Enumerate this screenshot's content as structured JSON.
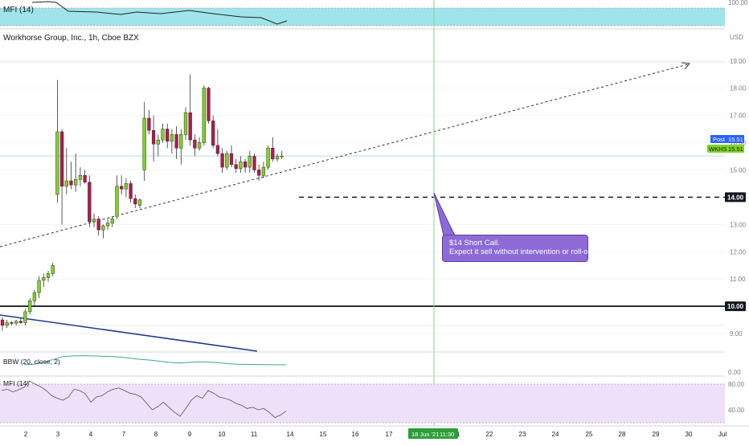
{
  "header": {
    "symbol_title": "Workhorse Group, Inc., 1h, Cboe BZX",
    "currency": "USD"
  },
  "colors": {
    "up": "#7ed321",
    "down": "#b5184e",
    "grid": "#f0f3fa",
    "mfi_top_band": "#9fe4ea",
    "mfi_bottom_band": "#efe0f9",
    "trend_down_line": "#1c3b8f",
    "bbw_line": "#3ea690",
    "crosshair": "#86d486",
    "callout_bg": "#8e6ad6",
    "post_badge": "#2962ff",
    "price_badge": "#7ed321"
  },
  "panes": {
    "top_mfi": {
      "label": "MFI (14)",
      "axis_label": "100.00"
    },
    "bbw": {
      "label": "BBW (20, close, 2)",
      "axis_label": "0.00"
    },
    "mfi": {
      "label": "MFI (14)",
      "axis_labels": [
        "80.00",
        "40.00"
      ]
    }
  },
  "annotation": {
    "line1": "$14 Short Call.",
    "line2": "Expect it sell without intervention or roll-out."
  },
  "badges": {
    "post_label": "Post",
    "post_value": "15.51",
    "symbol_label": "WKHS",
    "symbol_value": "15.51",
    "level_14": "14.00",
    "level_10": "10.00"
  },
  "crosshair": {
    "date_label": "18 Jun '21",
    "time_label": "11:30"
  },
  "chart_data": {
    "type": "candlestick",
    "title": "Workhorse Group, Inc., 1h, Cboe BZX",
    "ylim": [
      8.5,
      19.7
    ],
    "y_ticks": [
      "19.00",
      "18.00",
      "17.00",
      "16.00",
      "15.00",
      "13.00",
      "12.00",
      "11.00",
      "9.00"
    ],
    "x_ticks": [
      "2",
      "3",
      "4",
      "7",
      "8",
      "9",
      "10",
      "11",
      "14",
      "15",
      "16",
      "17",
      "21",
      "22",
      "23",
      "24",
      "25",
      "28",
      "29",
      "30",
      "Jul"
    ],
    "candles": [
      {
        "o": 9.5,
        "h": 9.6,
        "l": 9.1,
        "c": 9.3
      },
      {
        "o": 9.3,
        "h": 9.5,
        "l": 9.2,
        "c": 9.4
      },
      {
        "o": 9.4,
        "h": 9.45,
        "l": 9.3,
        "c": 9.38
      },
      {
        "o": 9.38,
        "h": 9.5,
        "l": 9.3,
        "c": 9.45
      },
      {
        "o": 9.45,
        "h": 9.55,
        "l": 9.35,
        "c": 9.4
      },
      {
        "o": 9.4,
        "h": 9.9,
        "l": 9.3,
        "c": 9.8
      },
      {
        "o": 9.8,
        "h": 10.3,
        "l": 9.7,
        "c": 10.2
      },
      {
        "o": 10.2,
        "h": 10.6,
        "l": 10.0,
        "c": 10.5
      },
      {
        "o": 10.5,
        "h": 11.1,
        "l": 10.3,
        "c": 10.95
      },
      {
        "o": 10.95,
        "h": 11.2,
        "l": 10.7,
        "c": 11.05
      },
      {
        "o": 11.05,
        "h": 11.3,
        "l": 10.9,
        "c": 11.2
      },
      {
        "o": 11.2,
        "h": 11.6,
        "l": 11.1,
        "c": 11.5
      },
      {
        "o": 14.1,
        "h": 18.3,
        "l": 13.8,
        "c": 16.4
      },
      {
        "o": 16.4,
        "h": 16.5,
        "l": 13.0,
        "c": 14.4
      },
      {
        "o": 14.4,
        "h": 15.8,
        "l": 14.1,
        "c": 14.6
      },
      {
        "o": 14.6,
        "h": 15.3,
        "l": 14.3,
        "c": 14.45
      },
      {
        "o": 14.45,
        "h": 15.6,
        "l": 14.2,
        "c": 14.65
      },
      {
        "o": 14.65,
        "h": 15.1,
        "l": 14.4,
        "c": 14.8
      },
      {
        "o": 14.8,
        "h": 15.0,
        "l": 14.5,
        "c": 14.55
      },
      {
        "o": 14.55,
        "h": 14.8,
        "l": 12.9,
        "c": 13.1
      },
      {
        "o": 13.1,
        "h": 13.4,
        "l": 12.9,
        "c": 13.2
      },
      {
        "o": 13.2,
        "h": 13.3,
        "l": 12.6,
        "c": 12.8
      },
      {
        "o": 12.8,
        "h": 13.0,
        "l": 12.5,
        "c": 12.95
      },
      {
        "o": 12.95,
        "h": 13.2,
        "l": 12.8,
        "c": 13.05
      },
      {
        "o": 13.05,
        "h": 13.3,
        "l": 12.9,
        "c": 13.2
      },
      {
        "o": 13.3,
        "h": 14.8,
        "l": 13.2,
        "c": 14.4
      },
      {
        "o": 14.4,
        "h": 14.8,
        "l": 14.1,
        "c": 14.3
      },
      {
        "o": 14.3,
        "h": 14.7,
        "l": 14.0,
        "c": 14.5
      },
      {
        "o": 14.5,
        "h": 14.6,
        "l": 13.8,
        "c": 13.95
      },
      {
        "o": 13.95,
        "h": 14.1,
        "l": 13.6,
        "c": 13.75
      },
      {
        "o": 13.7,
        "h": 13.95,
        "l": 13.6,
        "c": 13.9
      },
      {
        "o": 15.0,
        "h": 17.5,
        "l": 14.6,
        "c": 16.9
      },
      {
        "o": 16.9,
        "h": 17.2,
        "l": 16.3,
        "c": 16.45
      },
      {
        "o": 16.45,
        "h": 17.0,
        "l": 15.3,
        "c": 15.95
      },
      {
        "o": 15.95,
        "h": 16.3,
        "l": 15.5,
        "c": 16.1
      },
      {
        "o": 16.1,
        "h": 16.7,
        "l": 16.0,
        "c": 16.5
      },
      {
        "o": 16.5,
        "h": 16.7,
        "l": 15.8,
        "c": 16.05
      },
      {
        "o": 16.05,
        "h": 16.5,
        "l": 15.6,
        "c": 16.3
      },
      {
        "o": 16.3,
        "h": 16.6,
        "l": 15.4,
        "c": 15.8
      },
      {
        "o": 15.8,
        "h": 16.5,
        "l": 15.2,
        "c": 16.3
      },
      {
        "o": 16.3,
        "h": 17.3,
        "l": 16.1,
        "c": 17.1
      },
      {
        "o": 17.1,
        "h": 18.5,
        "l": 15.9,
        "c": 16.1
      },
      {
        "o": 16.1,
        "h": 16.3,
        "l": 15.5,
        "c": 15.8
      },
      {
        "o": 15.8,
        "h": 16.2,
        "l": 15.7,
        "c": 16.0
      },
      {
        "o": 16.0,
        "h": 18.1,
        "l": 15.9,
        "c": 18.0
      },
      {
        "o": 18.0,
        "h": 18.05,
        "l": 16.7,
        "c": 16.8
      },
      {
        "o": 16.8,
        "h": 17.0,
        "l": 15.8,
        "c": 15.9
      },
      {
        "o": 15.9,
        "h": 16.5,
        "l": 15.5,
        "c": 15.6
      },
      {
        "o": 15.6,
        "h": 15.8,
        "l": 14.9,
        "c": 15.1
      },
      {
        "o": 15.1,
        "h": 15.7,
        "l": 15.0,
        "c": 15.6
      },
      {
        "o": 15.6,
        "h": 15.9,
        "l": 15.1,
        "c": 15.2
      },
      {
        "o": 15.2,
        "h": 15.4,
        "l": 14.9,
        "c": 15.05
      },
      {
        "o": 15.05,
        "h": 15.5,
        "l": 14.9,
        "c": 15.3
      },
      {
        "o": 15.3,
        "h": 15.4,
        "l": 14.9,
        "c": 15.1
      },
      {
        "o": 15.1,
        "h": 15.7,
        "l": 14.9,
        "c": 15.5
      },
      {
        "o": 15.5,
        "h": 15.6,
        "l": 14.9,
        "c": 15.0
      },
      {
        "o": 15.0,
        "h": 15.2,
        "l": 14.6,
        "c": 14.8
      },
      {
        "o": 14.8,
        "h": 15.3,
        "l": 14.7,
        "c": 15.1
      },
      {
        "o": 15.1,
        "h": 15.9,
        "l": 15.0,
        "c": 15.8
      },
      {
        "o": 15.8,
        "h": 16.2,
        "l": 15.3,
        "c": 15.4
      },
      {
        "o": 15.4,
        "h": 15.6,
        "l": 15.3,
        "c": 15.5
      },
      {
        "o": 15.5,
        "h": 15.7,
        "l": 15.4,
        "c": 15.51
      }
    ],
    "levels": [
      14.0,
      10.0
    ],
    "current_price": 15.51,
    "bbw_values": [
      0.55,
      0.6,
      0.75,
      1.0,
      1.25,
      1.3,
      1.32,
      1.3,
      1.28,
      1.25,
      1.2,
      1.1,
      1.0,
      0.95,
      0.85,
      0.75,
      0.7,
      0.75,
      0.8,
      0.78,
      0.72,
      0.65,
      0.6,
      0.58,
      0.57,
      0.56,
      0.55,
      0.55
    ],
    "mfi_values": [
      70,
      72,
      68,
      71,
      75,
      85,
      80,
      76,
      70,
      62,
      58,
      55,
      60,
      72,
      70,
      65,
      52,
      60,
      62,
      68,
      72,
      74,
      70,
      66,
      64,
      60,
      50,
      40,
      45,
      52,
      44,
      36,
      30,
      42,
      55,
      62,
      58,
      70,
      66,
      60,
      58,
      55,
      50,
      47,
      42,
      44,
      40,
      42,
      36,
      28,
      32,
      38
    ]
  }
}
